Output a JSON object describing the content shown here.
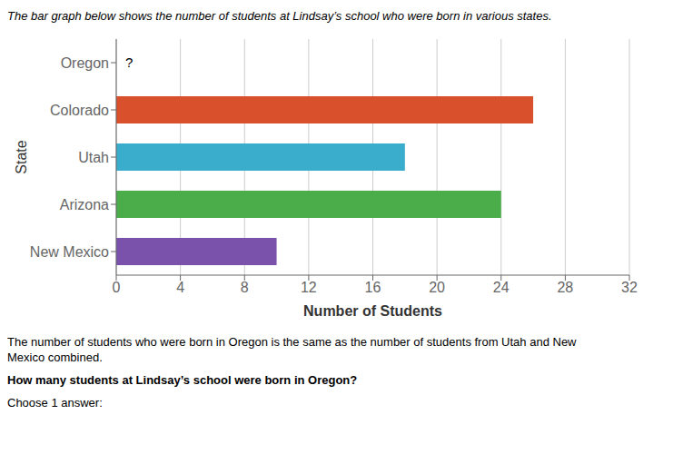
{
  "chart_data": {
    "type": "bar",
    "orientation": "horizontal",
    "title": "The bar graph below shows the number of students at Lindsay’s school who were born in various states.",
    "categories": [
      "New Mexico",
      "Arizona",
      "Utah",
      "Colorado",
      "Oregon"
    ],
    "values": [
      10,
      24,
      18,
      26,
      null
    ],
    "colors": [
      "#7b52ab",
      "#4aad4a",
      "#3aaccc",
      "#d9512c",
      "#ffffff"
    ],
    "annotations": [
      {
        "category": "Oregon",
        "text": "?"
      }
    ],
    "xlabel": "Number of Students",
    "ylabel": "State",
    "xlim": [
      0,
      32
    ],
    "xticks": [
      0,
      4,
      8,
      12,
      16,
      20,
      24,
      28,
      32
    ],
    "grid": true,
    "footnote": [
      "The number of students who were born in Oregon is the same as the number of students from Utah and New",
      "Mexico combined."
    ],
    "question": "How many students at Lindsay’s school were born in Oregon?",
    "answer_prompt": "Choose 1 answer:"
  }
}
